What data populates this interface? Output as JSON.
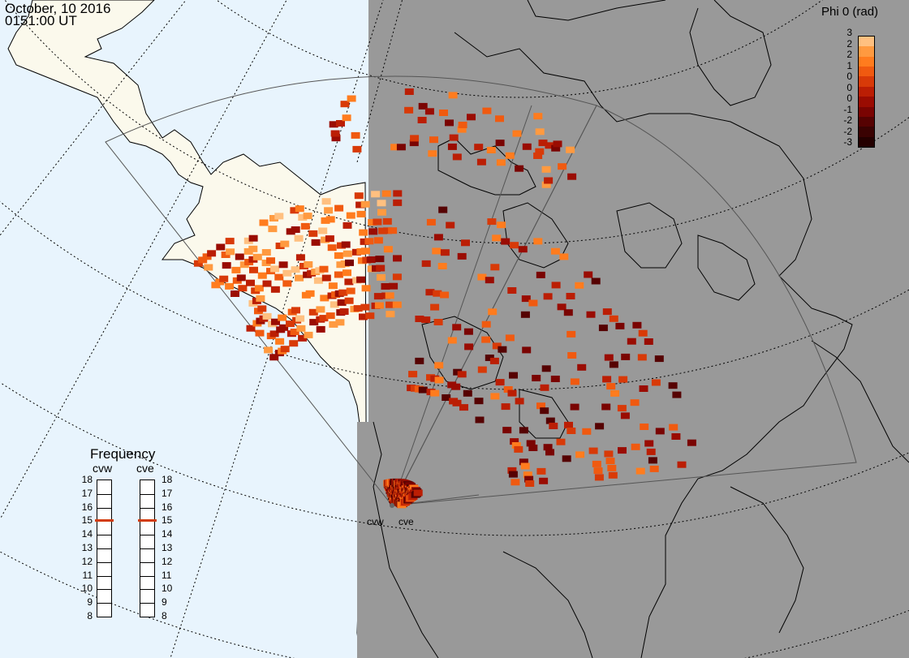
{
  "header": {
    "date": "October, 10 2016",
    "time": "0151:00 UT"
  },
  "color_scale": {
    "title": "Phi 0 (rad)",
    "labels": [
      "3",
      "2",
      "2",
      "1",
      "0",
      "0",
      "0",
      "-1",
      "-2",
      "-2",
      "-3"
    ],
    "colors": [
      "#ffc080",
      "#ff9a40",
      "#ff7c1e",
      "#f05a10",
      "#d83a08",
      "#bb1e04",
      "#9a0c02",
      "#7a0402",
      "#560202",
      "#3a0202",
      "#240000"
    ]
  },
  "frequency_panel": {
    "title": "Frequency",
    "radars": [
      "cvw",
      "cve"
    ],
    "ticks": [
      "18",
      "17",
      "16",
      "15",
      "14",
      "13",
      "12",
      "11",
      "10",
      "9",
      "8"
    ],
    "cvw_freq_mhz": 15,
    "cve_freq_mhz": 15,
    "marker_color": "#d23c0c"
  },
  "radar_sites": {
    "cvw": "cvw",
    "cve": "cve"
  },
  "map": {
    "ocean_color": "#e8f4fd",
    "land_color": "#fbf9ec",
    "night_color": "#999999"
  }
}
